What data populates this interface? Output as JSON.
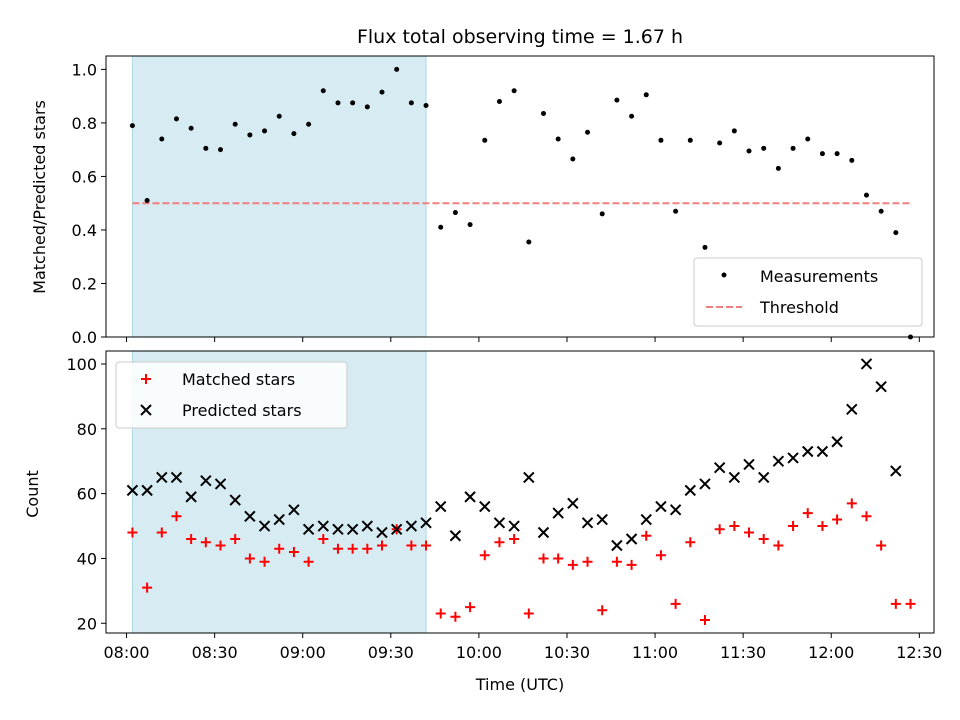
{
  "title": "Flux total observing time = 1.67 h",
  "chart_data": [
    {
      "type": "scatter",
      "ylabel": "Matched/Predicted stars",
      "xlim": [
        "07:53",
        "12:35"
      ],
      "ylim": [
        0,
        1.05
      ],
      "yticks": [
        0.0,
        0.2,
        0.4,
        0.6,
        0.8,
        1.0
      ],
      "shaded_span": [
        "08:02",
        "09:42"
      ],
      "threshold": {
        "value": 0.5,
        "from": "08:02",
        "to": "12:27",
        "color": "#f08080"
      },
      "legend": {
        "position": "lower-right",
        "entries": [
          "Measurements",
          "Threshold"
        ]
      },
      "series": [
        {
          "name": "Measurements",
          "color": "#000000",
          "x": [
            "08:02",
            "08:07",
            "08:12",
            "08:17",
            "08:22",
            "08:27",
            "08:32",
            "08:37",
            "08:42",
            "08:47",
            "08:52",
            "08:57",
            "09:02",
            "09:07",
            "09:12",
            "09:17",
            "09:22",
            "09:27",
            "09:32",
            "09:37",
            "09:42",
            "09:47",
            "09:52",
            "09:57",
            "10:02",
            "10:07",
            "10:12",
            "10:17",
            "10:22",
            "10:27",
            "10:32",
            "10:37",
            "10:42",
            "10:47",
            "10:52",
            "10:57",
            "11:02",
            "11:07",
            "11:12",
            "11:17",
            "11:22",
            "11:27",
            "11:32",
            "11:37",
            "11:42",
            "11:47",
            "11:52",
            "11:57",
            "12:02",
            "12:07",
            "12:12",
            "12:17",
            "12:22",
            "12:27"
          ],
          "y": [
            0.79,
            0.51,
            0.74,
            0.815,
            0.78,
            0.705,
            0.7,
            0.795,
            0.755,
            0.77,
            0.825,
            0.76,
            0.795,
            0.92,
            0.875,
            0.875,
            0.86,
            0.915,
            1.0,
            0.875,
            0.865,
            0.41,
            0.465,
            0.42,
            0.735,
            0.88,
            0.92,
            0.355,
            0.835,
            0.74,
            0.665,
            0.765,
            0.46,
            0.885,
            0.825,
            0.905,
            0.735,
            0.47,
            0.735,
            0.335,
            0.725,
            0.77,
            0.695,
            0.705,
            0.63,
            0.705,
            0.74,
            0.685,
            0.685,
            0.66,
            0.53,
            0.47,
            0.39,
            0.0
          ]
        }
      ]
    },
    {
      "type": "scatter",
      "ylabel": "Count",
      "xlabel": "Time (UTC)",
      "xlim": [
        "07:53",
        "12:35"
      ],
      "ylim": [
        17,
        104
      ],
      "yticks": [
        20,
        40,
        60,
        80,
        100
      ],
      "xticks": [
        "08:00",
        "08:30",
        "09:00",
        "09:30",
        "10:00",
        "10:30",
        "11:00",
        "11:30",
        "12:00",
        "12:30"
      ],
      "shaded_span": [
        "08:02",
        "09:42"
      ],
      "legend": {
        "position": "upper-left",
        "entries": [
          "Matched stars",
          "Predicted stars"
        ]
      },
      "series": [
        {
          "name": "Matched stars",
          "color": "#ff0000",
          "x": [
            "08:02",
            "08:07",
            "08:12",
            "08:17",
            "08:22",
            "08:27",
            "08:32",
            "08:37",
            "08:42",
            "08:47",
            "08:52",
            "08:57",
            "09:02",
            "09:07",
            "09:12",
            "09:17",
            "09:22",
            "09:27",
            "09:32",
            "09:37",
            "09:42",
            "09:47",
            "09:52",
            "09:57",
            "10:02",
            "10:07",
            "10:12",
            "10:17",
            "10:22",
            "10:27",
            "10:32",
            "10:37",
            "10:42",
            "10:47",
            "10:52",
            "10:57",
            "11:02",
            "11:07",
            "11:12",
            "11:17",
            "11:22",
            "11:27",
            "11:32",
            "11:37",
            "11:42",
            "11:47",
            "11:52",
            "11:57",
            "12:02",
            "12:07",
            "12:12",
            "12:17",
            "12:22",
            "12:27"
          ],
          "y": [
            48,
            31,
            48,
            53,
            46,
            45,
            44,
            46,
            40,
            39,
            43,
            42,
            39,
            46,
            43,
            43,
            43,
            44,
            49,
            44,
            44,
            23,
            22,
            25,
            41,
            45,
            46,
            23,
            40,
            40,
            38,
            39,
            24,
            39,
            38,
            47,
            41,
            26,
            45,
            21,
            49,
            50,
            48,
            46,
            44,
            50,
            54,
            50,
            52,
            57,
            53,
            44,
            26,
            26
          ]
        },
        {
          "name": "Predicted stars",
          "color": "#000000",
          "x": [
            "08:02",
            "08:07",
            "08:12",
            "08:17",
            "08:22",
            "08:27",
            "08:32",
            "08:37",
            "08:42",
            "08:47",
            "08:52",
            "08:57",
            "09:02",
            "09:07",
            "09:12",
            "09:17",
            "09:22",
            "09:27",
            "09:32",
            "09:37",
            "09:42",
            "09:47",
            "09:52",
            "09:57",
            "10:02",
            "10:07",
            "10:12",
            "10:17",
            "10:22",
            "10:27",
            "10:32",
            "10:37",
            "10:42",
            "10:47",
            "10:52",
            "10:57",
            "11:02",
            "11:07",
            "11:12",
            "11:17",
            "11:22",
            "11:27",
            "11:32",
            "11:37",
            "11:42",
            "11:47",
            "11:52",
            "11:57",
            "12:02",
            "12:07",
            "12:12",
            "12:17",
            "12:22"
          ],
          "y": [
            61,
            61,
            65,
            65,
            59,
            64,
            63,
            58,
            53,
            50,
            52,
            55,
            49,
            50,
            49,
            49,
            50,
            48,
            49,
            50,
            51,
            56,
            47,
            59,
            56,
            51,
            50,
            65,
            48,
            54,
            57,
            51,
            52,
            44,
            46,
            52,
            56,
            55,
            61,
            63,
            68,
            65,
            69,
            65,
            70,
            71,
            73,
            73,
            76,
            86,
            100,
            93,
            67
          ]
        }
      ]
    }
  ]
}
